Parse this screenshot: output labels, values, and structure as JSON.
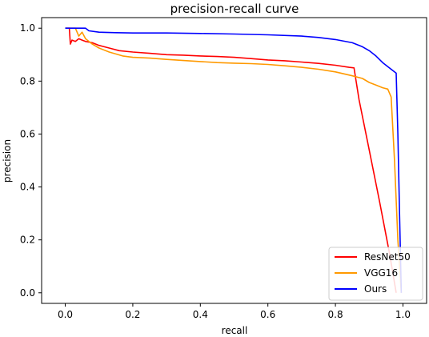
{
  "chart_data": {
    "type": "line",
    "title": "precision-recall curve",
    "xlabel": "recall",
    "ylabel": "precision",
    "xlim": [
      -0.07,
      1.07
    ],
    "ylim": [
      -0.04,
      1.04
    ],
    "xticks": [
      "0.0",
      "0.2",
      "0.4",
      "0.6",
      "0.8",
      "1.0"
    ],
    "yticks": [
      "0.0",
      "0.2",
      "0.4",
      "0.6",
      "0.8",
      "1.0"
    ],
    "grid": false,
    "legend_position": "lower-right",
    "series": [
      {
        "name": "ResNet50",
        "color": "#ff0000",
        "x": [
          0.0,
          0.012,
          0.015,
          0.02,
          0.03,
          0.04,
          0.05,
          0.06,
          0.08,
          0.1,
          0.13,
          0.16,
          0.2,
          0.25,
          0.3,
          0.35,
          0.4,
          0.45,
          0.5,
          0.55,
          0.6,
          0.65,
          0.7,
          0.75,
          0.8,
          0.84,
          0.855,
          0.87,
          0.9,
          0.93,
          0.96,
          0.98
        ],
        "y": [
          1.0,
          1.0,
          0.94,
          0.955,
          0.95,
          0.96,
          0.955,
          0.95,
          0.945,
          0.935,
          0.925,
          0.915,
          0.91,
          0.905,
          0.9,
          0.898,
          0.895,
          0.893,
          0.89,
          0.885,
          0.88,
          0.877,
          0.872,
          0.867,
          0.86,
          0.852,
          0.85,
          0.73,
          0.54,
          0.35,
          0.15,
          0.0
        ]
      },
      {
        "name": "VGG16",
        "color": "#ff9900",
        "x": [
          0.0,
          0.03,
          0.04,
          0.05,
          0.06,
          0.08,
          0.1,
          0.13,
          0.17,
          0.2,
          0.25,
          0.3,
          0.35,
          0.4,
          0.45,
          0.5,
          0.55,
          0.6,
          0.65,
          0.7,
          0.75,
          0.8,
          0.85,
          0.88,
          0.9,
          0.92,
          0.94,
          0.955,
          0.965,
          0.975,
          0.985,
          0.995
        ],
        "y": [
          1.0,
          1.0,
          0.97,
          0.985,
          0.96,
          0.94,
          0.925,
          0.91,
          0.895,
          0.89,
          0.887,
          0.882,
          0.878,
          0.874,
          0.87,
          0.868,
          0.866,
          0.863,
          0.858,
          0.852,
          0.845,
          0.835,
          0.82,
          0.81,
          0.795,
          0.785,
          0.775,
          0.77,
          0.74,
          0.5,
          0.2,
          0.0
        ]
      },
      {
        "name": "Ours",
        "color": "#0000ff",
        "x": [
          0.0,
          0.06,
          0.07,
          0.1,
          0.15,
          0.2,
          0.3,
          0.4,
          0.5,
          0.6,
          0.7,
          0.75,
          0.8,
          0.85,
          0.88,
          0.9,
          0.92,
          0.94,
          0.955,
          0.97,
          0.98,
          0.985,
          0.99,
          0.995
        ],
        "y": [
          1.0,
          1.0,
          0.99,
          0.985,
          0.983,
          0.982,
          0.982,
          0.98,
          0.978,
          0.975,
          0.97,
          0.965,
          0.957,
          0.945,
          0.93,
          0.915,
          0.895,
          0.87,
          0.855,
          0.84,
          0.83,
          0.6,
          0.3,
          0.0
        ]
      }
    ]
  }
}
